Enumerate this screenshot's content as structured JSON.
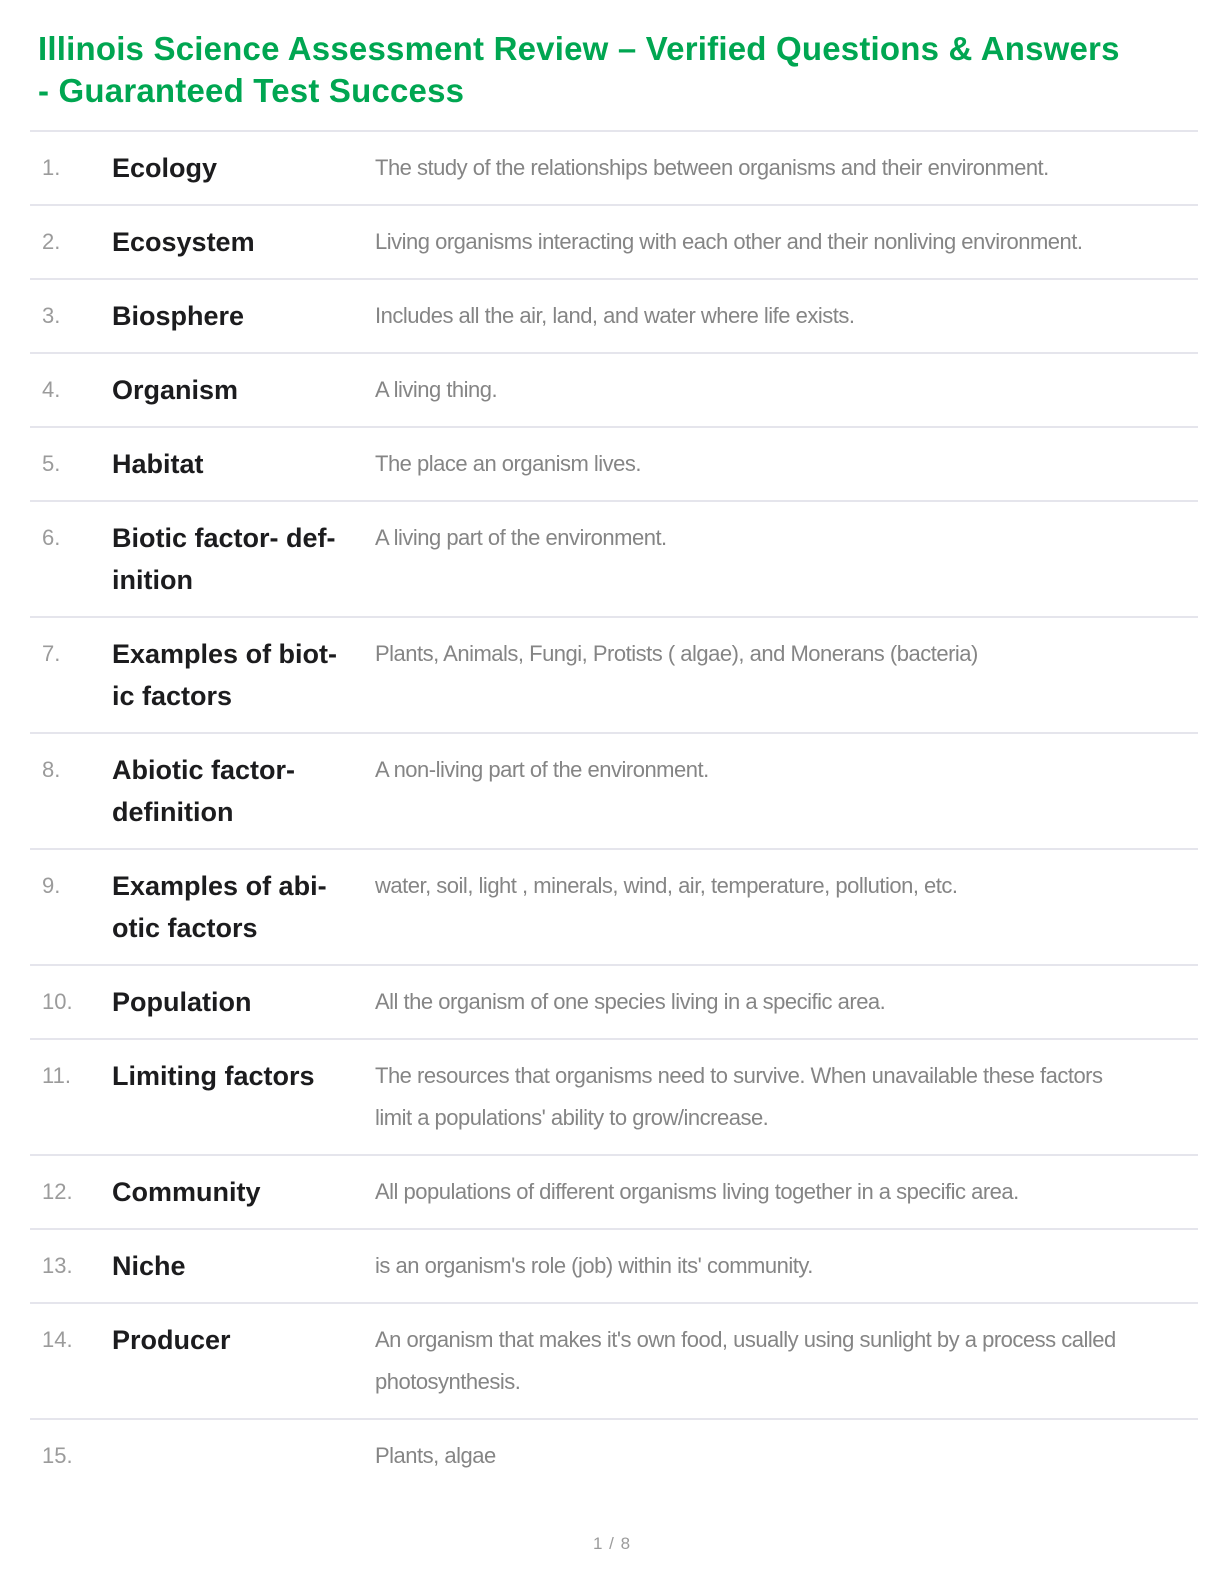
{
  "title": "Illinois Science Assessment Review – Verified Questions & Answers\n- Guaranteed Test Success",
  "title_color": "#00a651",
  "rows": [
    {
      "num": "1.",
      "term": "Ecology",
      "definition": "The study of the relationships between organisms and their environment."
    },
    {
      "num": "2.",
      "term": "Ecosystem",
      "definition": "Living organisms interacting with each other and their nonliving environment."
    },
    {
      "num": "3.",
      "term": "Biosphere",
      "definition": "Includes all the air, land, and water where life exists."
    },
    {
      "num": "4.",
      "term": "Organism",
      "definition": "A living thing."
    },
    {
      "num": "5.",
      "term": "Habitat",
      "definition": "The place an organism lives."
    },
    {
      "num": "6.",
      "term": "Biotic factor- def-\ninition",
      "definition": "A living part of the environment."
    },
    {
      "num": "7.",
      "term": "Examples of biot-\nic factors",
      "definition": "Plants, Animals, Fungi, Protists ( algae), and Monerans (bacteria)"
    },
    {
      "num": "8.",
      "term": "Abiotic factor-\ndefinition",
      "definition": "A non-living part of the environment."
    },
    {
      "num": "9.",
      "term": "Examples of abi-\notic factors",
      "definition": "water, soil, light , minerals, wind, air, temperature, pollution, etc."
    },
    {
      "num": "10.",
      "term": "Population",
      "definition": "All the organism of one species living in a specific area."
    },
    {
      "num": "11.",
      "term": "Limiting factors",
      "definition": "The resources that organisms need to survive. When unavailable these factors\nlimit a populations' ability to grow/increase."
    },
    {
      "num": "12.",
      "term": "Community",
      "definition": "All populations of different organisms living together in a specific area."
    },
    {
      "num": "13.",
      "term": "Niche",
      "definition": "is an organism's role (job) within its' community."
    },
    {
      "num": "14.",
      "term": "Producer",
      "definition": "An organism that makes it's own food, usually using sunlight by a process called\nphotosynthesis."
    },
    {
      "num": "15.",
      "term": "",
      "definition": "Plants, algae"
    }
  ],
  "footer": {
    "page_indicator": "1 / 8"
  }
}
